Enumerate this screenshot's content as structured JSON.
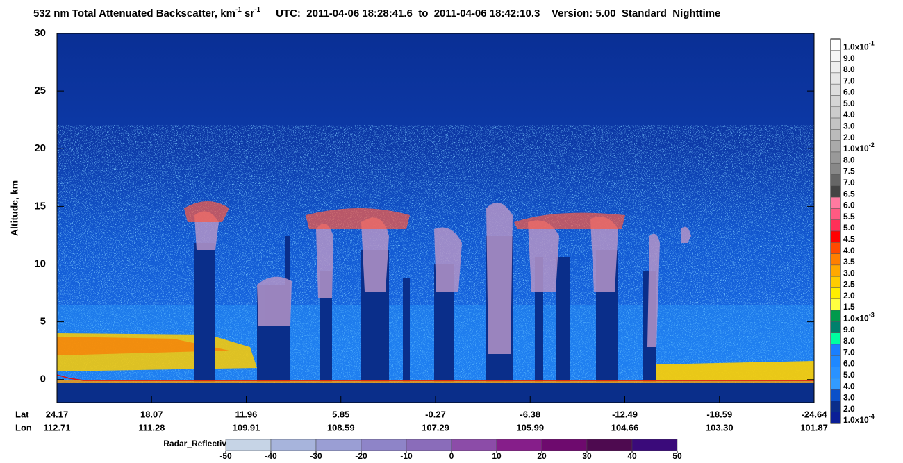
{
  "chart_data": {
    "type": "curtain",
    "title": {
      "main": "532 nm Total Attenuated Backscatter, km",
      "sup1": "-1",
      "mid": " sr",
      "sup2": "-1",
      "rest": "UTC:  2011-04-06 18:28:41.6  to  2011-04-06 18:42:10.3    Version: 5.00  Standard  Nighttime"
    },
    "y_label": "Altitude, km",
    "ylim": [
      -2,
      30
    ],
    "yticks": [
      0,
      5,
      10,
      15,
      20,
      25,
      30
    ],
    "xtick_rows": [
      {
        "name": "Lat",
        "values": [
          24.17,
          18.07,
          11.96,
          5.85,
          -0.27,
          -6.38,
          -12.49,
          -18.59,
          -24.64
        ]
      },
      {
        "name": "Lon",
        "values": [
          112.71,
          111.28,
          109.91,
          108.59,
          107.29,
          105.99,
          104.66,
          {
            "value": 103.3,
            "label": "103.30"
          },
          101.87
        ]
      }
    ],
    "colorbar": {
      "labels": [
        {
          "text": "1.0x10",
          "sup": "-1"
        },
        "9.0",
        "8.0",
        "7.0",
        "6.0",
        "5.0",
        "4.0",
        "3.0",
        "2.0",
        {
          "text": "1.0x10",
          "sup": "-2"
        },
        "8.0",
        "7.5",
        "7.0",
        "6.5",
        "6.0",
        "5.5",
        "5.0",
        "4.5",
        "4.0",
        "3.5",
        "3.0",
        "2.5",
        "2.0",
        "1.5",
        {
          "text": "1.0x10",
          "sup": "-3"
        },
        "9.0",
        "8.0",
        "7.0",
        "6.0",
        "5.0",
        "4.0",
        "3.0",
        "2.0",
        {
          "text": "1.0x10",
          "sup": "-4"
        }
      ],
      "colors": [
        "#ffffff",
        "#f6f6f6",
        "#eeeeee",
        "#e6e6e6",
        "#dddddd",
        "#d5d5d5",
        "#cccccc",
        "#c4c4c4",
        "#bbbbbb",
        "#aaaaaa",
        "#999999",
        "#888888",
        "#666666",
        "#444444",
        "#ff7aa0",
        "#ff5a82",
        "#ff3058",
        "#ff0000",
        "#ff4a00",
        "#ff7f00",
        "#ffa800",
        "#ffcc00",
        "#ffee00",
        "#ffff40",
        "#009a4c",
        "#00806c",
        "#00ffa0",
        "#1a7fff",
        "#1f88ff",
        "#2a92ff",
        "#329bff",
        "#0a50c8",
        "#0a2e8a",
        "#0a1f96"
      ]
    },
    "radar": {
      "label": "Radar_Reflectivity",
      "ticks": [
        -50,
        -40,
        -30,
        -20,
        -10,
        0,
        10,
        20,
        30,
        40,
        50
      ],
      "colors": [
        "#c6d4e6",
        "#a7b4dc",
        "#9a9ed4",
        "#8e84c8",
        "#8a6cba",
        "#8c4ca8",
        "#861e8a",
        "#6e0a6e",
        "#4e0a50",
        "#3a0a7a"
      ]
    }
  }
}
